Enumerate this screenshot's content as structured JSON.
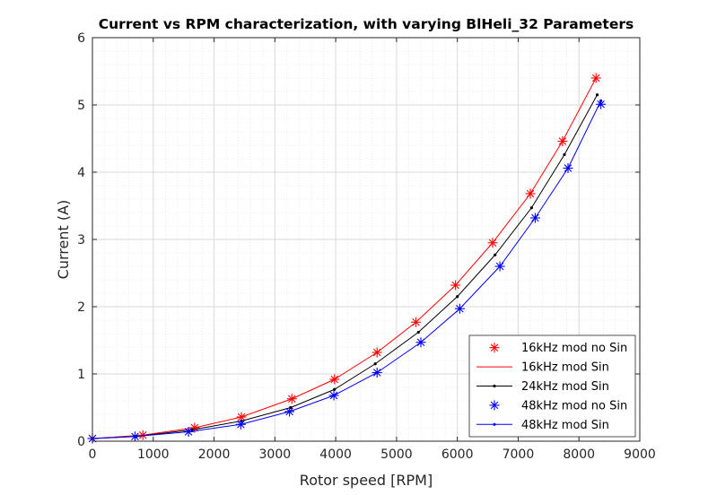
{
  "chart_data": {
    "type": "line",
    "title": "Current vs RPM characterization, with varying BlHeli_32 Parameters",
    "xlabel": "Rotor speed [RPM]",
    "ylabel": "Current (A)",
    "xlim": [
      0,
      9000
    ],
    "ylim": [
      0,
      6
    ],
    "xticks": [
      "0",
      "1000",
      "2000",
      "3000",
      "4000",
      "5000",
      "6000",
      "7000",
      "8000",
      "9000"
    ],
    "yticks": [
      "0",
      "1",
      "2",
      "3",
      "4",
      "5",
      "6"
    ],
    "grid": true,
    "minor_grid": true,
    "legend_position": "bottom-right",
    "series": [
      {
        "name": "16kHz mod no Sin",
        "style": "markers",
        "marker": "asterisk",
        "color": "#ff0000",
        "x": [
          0,
          830,
          1680,
          2450,
          3280,
          3980,
          4680,
          5320,
          5970,
          6580,
          7200,
          7730,
          8280
        ],
        "y": [
          0.04,
          0.09,
          0.2,
          0.36,
          0.63,
          0.92,
          1.32,
          1.77,
          2.32,
          2.95,
          3.68,
          4.46,
          5.4
        ]
      },
      {
        "name": "16kHz mod Sin",
        "style": "line",
        "marker": "none",
        "color": "#ff0000",
        "x": [
          0,
          830,
          1680,
          2450,
          3280,
          3980,
          4680,
          5320,
          5970,
          6580,
          7200,
          7730,
          8280
        ],
        "y": [
          0.04,
          0.09,
          0.2,
          0.36,
          0.63,
          0.92,
          1.32,
          1.77,
          2.32,
          2.95,
          3.68,
          4.46,
          5.4
        ]
      },
      {
        "name": "24kHz mod Sin",
        "style": "line",
        "marker": "dot",
        "color": "#000000",
        "x": [
          0,
          720,
          1640,
          2450,
          3260,
          3980,
          4650,
          5360,
          6000,
          6620,
          7220,
          7760,
          8300
        ],
        "y": [
          0.04,
          0.07,
          0.17,
          0.3,
          0.5,
          0.77,
          1.15,
          1.62,
          2.15,
          2.77,
          3.47,
          4.26,
          5.15
        ]
      },
      {
        "name": "48kHz mod no Sin",
        "style": "markers",
        "marker": "asterisk",
        "color": "#0000ff",
        "x": [
          0,
          700,
          1580,
          2440,
          3240,
          3970,
          4680,
          5400,
          6040,
          6700,
          7280,
          7820,
          8360
        ],
        "y": [
          0.04,
          0.07,
          0.14,
          0.25,
          0.44,
          0.68,
          1.02,
          1.47,
          1.97,
          2.6,
          3.32,
          4.06,
          5.01
        ]
      },
      {
        "name": "48kHz mod Sin",
        "style": "line",
        "marker": "dot",
        "color": "#0000ff",
        "x": [
          0,
          700,
          1580,
          2440,
          3240,
          3970,
          4680,
          5400,
          6040,
          6700,
          7280,
          7820,
          8360
        ],
        "y": [
          0.04,
          0.07,
          0.14,
          0.25,
          0.44,
          0.68,
          1.02,
          1.47,
          1.97,
          2.6,
          3.32,
          4.06,
          5.06
        ]
      }
    ]
  }
}
